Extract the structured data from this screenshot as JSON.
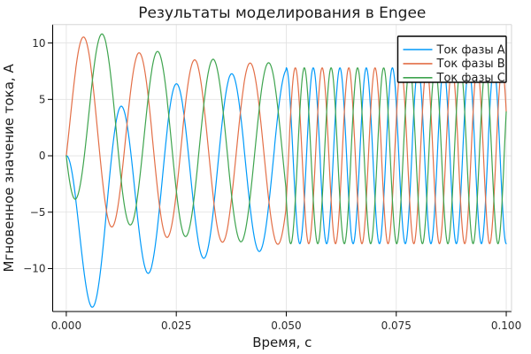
{
  "page": {
    "window_title": "Результаты моделирования в Engee"
  },
  "chart_data": {
    "type": "line",
    "title": "Результаты моделирования в Engee",
    "xlabel": "Время, с",
    "ylabel": "Мгновенное значение тока, А",
    "xlim": [
      -0.0031,
      0.1012
    ],
    "ylim": [
      -13.81,
      11.64
    ],
    "x_range_data": [
      0,
      0.1
    ],
    "grid": true,
    "legend_position": "top-right",
    "x_ticks": [
      {
        "value": 0.0,
        "label": "0.000"
      },
      {
        "value": 0.025,
        "label": "0.025"
      },
      {
        "value": 0.05,
        "label": "0.050"
      },
      {
        "value": 0.075,
        "label": "0.075"
      },
      {
        "value": 0.1,
        "label": "0.100"
      }
    ],
    "y_ticks": [
      {
        "value": 10,
        "label": "10"
      },
      {
        "value": 5,
        "label": "5"
      },
      {
        "value": 0,
        "label": "0"
      },
      {
        "value": -5,
        "label": "−5"
      },
      {
        "value": -10,
        "label": "−10"
      }
    ],
    "sampling": {
      "t_start": 0.0,
      "t_end": 0.1,
      "dt": 0.0001
    },
    "stage_switch_t": 0.05,
    "series": [
      {
        "name": "Ток фазы A",
        "color": "#009AFA",
        "stage1": {
          "amplitude": 8.0,
          "freq_hz": 79.37,
          "phase_deg": 96,
          "dc_tau_s": 0.0157
        },
        "stage2": {
          "amplitude": 7.8,
          "freq_hz": 162,
          "chirp_hz2": 160,
          "phase_deg": 90
        }
      },
      {
        "name": "Ток фазы B",
        "color": "#E36F47",
        "stage1": {
          "amplitude": 8.0,
          "freq_hz": 79.37,
          "phase_deg": -24,
          "dc_tau_s": 0.0157
        },
        "stage2": {
          "amplitude": 7.8,
          "freq_hz": 162,
          "chirp_hz2": 160,
          "phase_deg": -30
        }
      },
      {
        "name": "Ток фазы C",
        "color": "#3EA44E",
        "stage1": {
          "amplitude": 8.0,
          "freq_hz": 79.37,
          "phase_deg": -144,
          "dc_tau_s": 0.0157
        },
        "stage2": {
          "amplitude": 7.8,
          "freq_hz": 162,
          "chirp_hz2": 160,
          "phase_deg": 210
        }
      }
    ],
    "observed_extrema": {
      "phase_A_min": -13.3,
      "phase_B_first_peak": 10.7,
      "phase_C_first_peak": 10.8,
      "steady_state_amplitude": 7.8
    },
    "style": {
      "grid_color": "#E3E3E3",
      "spine_color": "#000000",
      "far_spine_color": "#D5D5D5",
      "legend_border_color": "#000000",
      "legend_bg_color": "#FFFFFF",
      "line_width": 1.2
    }
  }
}
